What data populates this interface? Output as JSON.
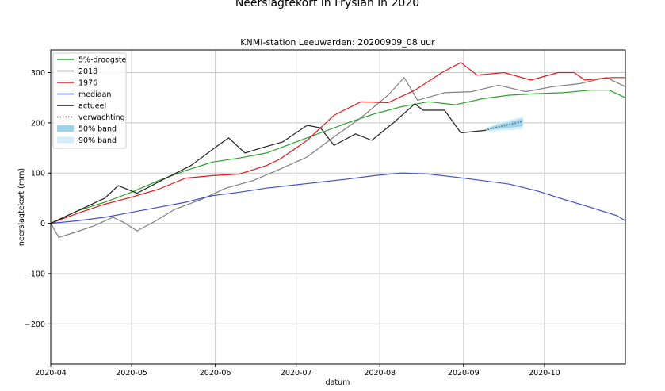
{
  "chart_data": {
    "type": "line",
    "title": "Neerslagtekort in Fryslân in 2020",
    "subtitle": "KNMI-station Leeuwarden: 20200909_08 uur",
    "xlabel": "datum",
    "ylabel": "neerslagtekort (mm)",
    "x_start": "2020-04-01",
    "x_end": "2020-10-31",
    "ylim": [
      -280,
      345
    ],
    "yticks": [
      300,
      200,
      100,
      0,
      -100,
      -200
    ],
    "ytick_labels": [
      "300",
      "200",
      "100",
      "0",
      "−100",
      "−200"
    ],
    "xticks": [
      "2020-04-01",
      "2020-05-01",
      "2020-06-01",
      "2020-07-01",
      "2020-08-01",
      "2020-09-01",
      "2020-10-01"
    ],
    "xtick_labels": [
      "2020-04",
      "2020-05",
      "2020-06",
      "2020-07",
      "2020-08",
      "2020-09",
      "2020-10"
    ],
    "grid": true,
    "legend_position": "top-left",
    "series": [
      {
        "name": "5%-droogste",
        "color": "#2ca02c",
        "style": "solid",
        "points": [
          [
            "2020-04-01",
            0
          ],
          [
            "2020-04-11",
            25
          ],
          [
            "2020-04-21",
            42
          ],
          [
            "2020-05-01",
            62
          ],
          [
            "2020-05-11",
            85
          ],
          [
            "2020-05-21",
            105
          ],
          [
            "2020-05-31",
            122
          ],
          [
            "2020-06-10",
            130
          ],
          [
            "2020-06-20",
            140
          ],
          [
            "2020-06-30",
            160
          ],
          [
            "2020-07-10",
            180
          ],
          [
            "2020-07-20",
            200
          ],
          [
            "2020-07-30",
            218
          ],
          [
            "2020-08-09",
            232
          ],
          [
            "2020-08-19",
            242
          ],
          [
            "2020-08-29",
            236
          ],
          [
            "2020-09-08",
            248
          ],
          [
            "2020-09-18",
            255
          ],
          [
            "2020-09-28",
            258
          ],
          [
            "2020-10-08",
            260
          ],
          [
            "2020-10-18",
            265
          ],
          [
            "2020-10-25",
            265
          ],
          [
            "2020-10-31",
            250
          ]
        ]
      },
      {
        "name": "2018",
        "color": "#808080",
        "style": "solid",
        "points": [
          [
            "2020-04-01",
            0
          ],
          [
            "2020-04-04",
            -28
          ],
          [
            "2020-04-10",
            -18
          ],
          [
            "2020-04-17",
            -5
          ],
          [
            "2020-04-24",
            12
          ],
          [
            "2020-04-28",
            2
          ],
          [
            "2020-05-03",
            -15
          ],
          [
            "2020-05-10",
            5
          ],
          [
            "2020-05-17",
            28
          ],
          [
            "2020-05-27",
            48
          ],
          [
            "2020-06-05",
            70
          ],
          [
            "2020-06-15",
            85
          ],
          [
            "2020-06-25",
            108
          ],
          [
            "2020-07-05",
            132
          ],
          [
            "2020-07-15",
            172
          ],
          [
            "2020-07-25",
            210
          ],
          [
            "2020-08-04",
            255
          ],
          [
            "2020-08-10",
            290
          ],
          [
            "2020-08-15",
            245
          ],
          [
            "2020-08-25",
            260
          ],
          [
            "2020-09-04",
            262
          ],
          [
            "2020-09-14",
            275
          ],
          [
            "2020-09-24",
            262
          ],
          [
            "2020-10-04",
            272
          ],
          [
            "2020-10-14",
            278
          ],
          [
            "2020-10-24",
            290
          ],
          [
            "2020-10-31",
            272
          ]
        ]
      },
      {
        "name": "1976",
        "color": "#e41a1c",
        "style": "solid",
        "points": [
          [
            "2020-04-01",
            0
          ],
          [
            "2020-04-11",
            20
          ],
          [
            "2020-04-21",
            38
          ],
          [
            "2020-05-01",
            52
          ],
          [
            "2020-05-11",
            68
          ],
          [
            "2020-05-21",
            90
          ],
          [
            "2020-05-31",
            95
          ],
          [
            "2020-06-10",
            98
          ],
          [
            "2020-06-20",
            115
          ],
          [
            "2020-06-25",
            128
          ],
          [
            "2020-07-05",
            165
          ],
          [
            "2020-07-15",
            215
          ],
          [
            "2020-07-25",
            242
          ],
          [
            "2020-08-04",
            240
          ],
          [
            "2020-08-14",
            265
          ],
          [
            "2020-08-24",
            300
          ],
          [
            "2020-08-31",
            320
          ],
          [
            "2020-09-06",
            295
          ],
          [
            "2020-09-16",
            300
          ],
          [
            "2020-09-26",
            285
          ],
          [
            "2020-10-06",
            300
          ],
          [
            "2020-10-12",
            300
          ],
          [
            "2020-10-16",
            285
          ],
          [
            "2020-10-26",
            290
          ],
          [
            "2020-10-31",
            290
          ]
        ]
      },
      {
        "name": "mediaan",
        "color": "#3f51c9",
        "style": "solid",
        "points": [
          [
            "2020-04-01",
            0
          ],
          [
            "2020-04-11",
            5
          ],
          [
            "2020-04-21",
            12
          ],
          [
            "2020-05-01",
            22
          ],
          [
            "2020-05-11",
            32
          ],
          [
            "2020-05-21",
            42
          ],
          [
            "2020-05-31",
            55
          ],
          [
            "2020-06-10",
            62
          ],
          [
            "2020-06-20",
            70
          ],
          [
            "2020-06-30",
            76
          ],
          [
            "2020-07-10",
            82
          ],
          [
            "2020-07-20",
            88
          ],
          [
            "2020-07-30",
            95
          ],
          [
            "2020-08-09",
            100
          ],
          [
            "2020-08-19",
            98
          ],
          [
            "2020-08-29",
            92
          ],
          [
            "2020-09-08",
            85
          ],
          [
            "2020-09-18",
            78
          ],
          [
            "2020-09-28",
            65
          ],
          [
            "2020-10-08",
            48
          ],
          [
            "2020-10-18",
            32
          ],
          [
            "2020-10-28",
            15
          ],
          [
            "2020-10-31",
            5
          ]
        ]
      },
      {
        "name": "actueel",
        "color": "#222222",
        "style": "solid",
        "points": [
          [
            "2020-04-01",
            0
          ],
          [
            "2020-04-11",
            25
          ],
          [
            "2020-04-21",
            50
          ],
          [
            "2020-04-26",
            75
          ],
          [
            "2020-05-03",
            60
          ],
          [
            "2020-05-13",
            88
          ],
          [
            "2020-05-23",
            115
          ],
          [
            "2020-06-02",
            155
          ],
          [
            "2020-06-06",
            170
          ],
          [
            "2020-06-12",
            140
          ],
          [
            "2020-06-18",
            150
          ],
          [
            "2020-06-26",
            162
          ],
          [
            "2020-07-05",
            195
          ],
          [
            "2020-07-10",
            190
          ],
          [
            "2020-07-15",
            155
          ],
          [
            "2020-07-23",
            178
          ],
          [
            "2020-07-29",
            165
          ],
          [
            "2020-08-06",
            200
          ],
          [
            "2020-08-14",
            238
          ],
          [
            "2020-08-17",
            225
          ],
          [
            "2020-08-25",
            225
          ],
          [
            "2020-08-31",
            180
          ],
          [
            "2020-09-09",
            185
          ]
        ]
      },
      {
        "name": "verwachting",
        "color": "#555555",
        "style": "dotted",
        "points": [
          [
            "2020-09-09",
            185
          ],
          [
            "2020-09-14",
            192
          ],
          [
            "2020-09-19",
            198
          ],
          [
            "2020-09-23",
            203
          ]
        ]
      }
    ],
    "bands": [
      {
        "name": "50% band",
        "color": "#9fd3ea",
        "points": [
          [
            "2020-09-09",
            185,
            187
          ],
          [
            "2020-09-14",
            188,
            197
          ],
          [
            "2020-09-19",
            191,
            203
          ],
          [
            "2020-09-23",
            193,
            208
          ]
        ]
      },
      {
        "name": "90% band",
        "color": "#d3eef8",
        "points": [
          [
            "2020-09-09",
            183,
            189
          ],
          [
            "2020-09-14",
            184,
            200
          ],
          [
            "2020-09-19",
            186,
            207
          ],
          [
            "2020-09-23",
            188,
            212
          ]
        ]
      }
    ]
  }
}
